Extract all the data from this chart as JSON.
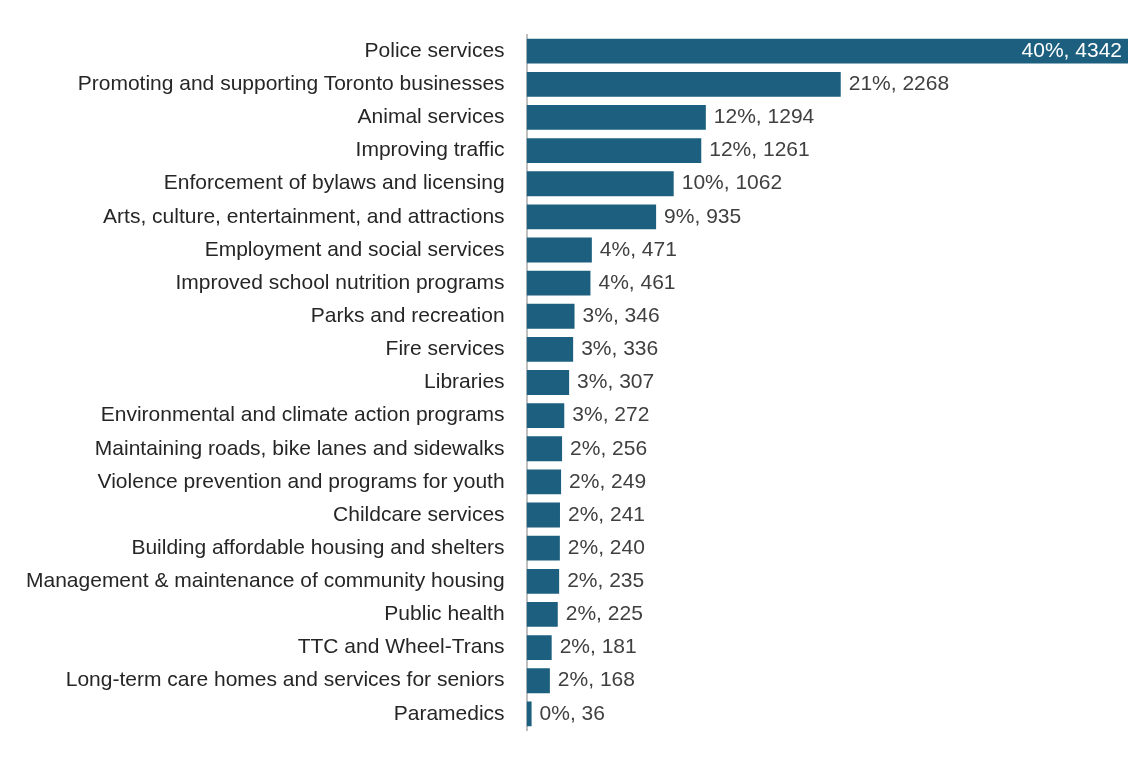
{
  "chart_data": {
    "type": "bar",
    "orientation": "horizontal",
    "color": "#1c5f7e",
    "grid": false,
    "legend": false,
    "tick_labels": "y",
    "categories": [
      "Police services",
      "Promoting and supporting Toronto businesses",
      "Animal services",
      "Improving traffic",
      "Enforcement of bylaws and licensing",
      "Arts, culture, entertainment, and attractions",
      "Employment and social services",
      "Improved school nutrition programs",
      "Parks and recreation",
      "Fire services",
      "Libraries",
      "Environmental and climate action programs",
      "Maintaining roads, bike lanes and sidewalks",
      "Violence prevention and programs for youth",
      "Childcare services",
      "Building affordable housing and shelters",
      "Management & maintenance of community housing",
      "Public health",
      "TTC and Wheel-Trans",
      "Long-term care homes and services for seniors",
      "Paramedics"
    ],
    "values": [
      4342,
      2268,
      1294,
      1261,
      1062,
      935,
      471,
      461,
      346,
      336,
      307,
      272,
      256,
      249,
      241,
      240,
      235,
      225,
      181,
      168,
      36
    ],
    "value_labels": [
      "40%, 4342",
      "21%, 2268",
      "12%, 1294",
      "12%, 1261",
      "10%, 1062",
      "9%, 935",
      "4%, 471",
      "4%, 461",
      "3%, 346",
      "3%, 336",
      "3%, 307",
      "3%, 272",
      "2%, 256",
      "2%, 249",
      "2%, 241",
      "2%, 240",
      "2%, 235",
      "2%, 225",
      "2%, 181",
      "2%, 168",
      "0%, 36"
    ]
  }
}
